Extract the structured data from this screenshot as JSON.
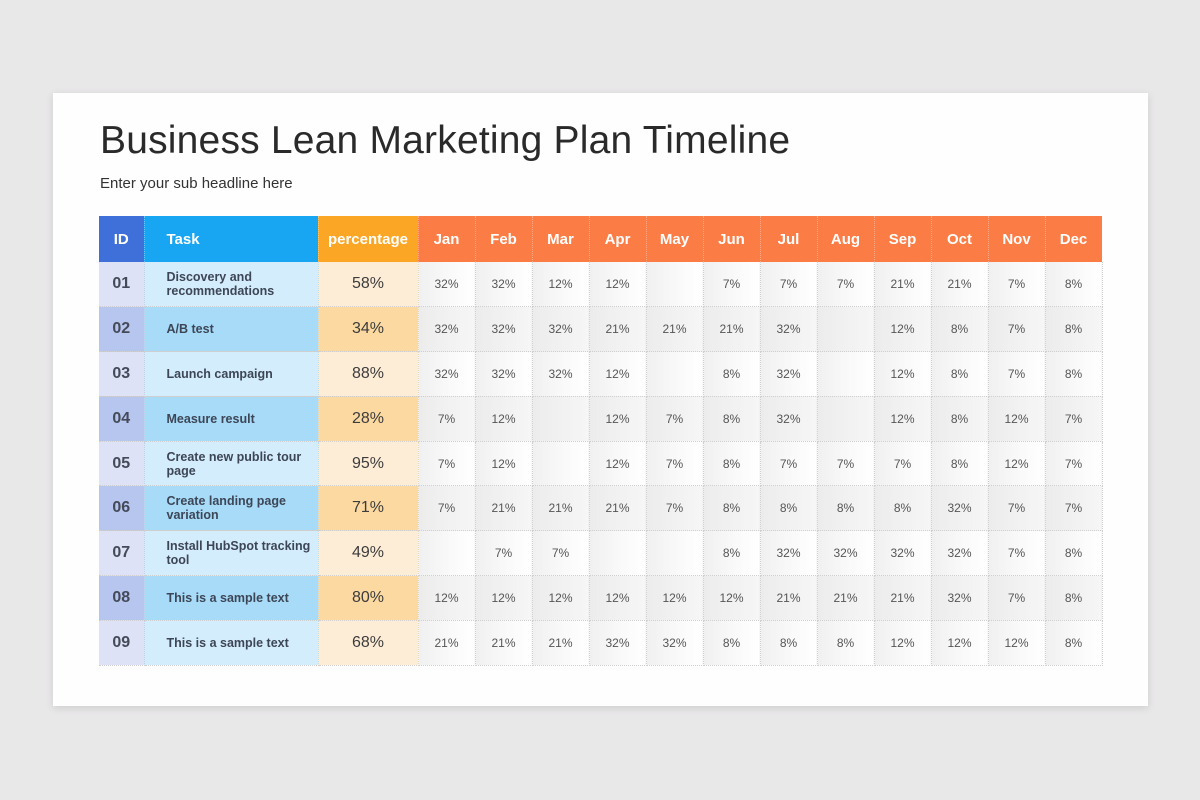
{
  "slide": {
    "title": "Business Lean Marketing Plan Timeline",
    "subtitle": "Enter your sub headline here"
  },
  "colors": {
    "id_header": "#3f6fd8",
    "task_header": "#18a6f2",
    "percentage_header": "#fba624",
    "month_header": "#fc7c45"
  },
  "table": {
    "headers": {
      "id": "ID",
      "task": "Task",
      "percentage": "percentage",
      "months": [
        "Jan",
        "Feb",
        "Mar",
        "Apr",
        "May",
        "Jun",
        "Jul",
        "Aug",
        "Sep",
        "Oct",
        "Nov",
        "Dec"
      ]
    },
    "rows": [
      {
        "id": "01",
        "task": "Discovery and recommendations",
        "percentage": "58%",
        "months": [
          "32%",
          "32%",
          "12%",
          "12%",
          "",
          "7%",
          "7%",
          "7%",
          "21%",
          "21%",
          "7%",
          "8%"
        ]
      },
      {
        "id": "02",
        "task": "A/B test",
        "percentage": "34%",
        "months": [
          "32%",
          "32%",
          "32%",
          "21%",
          "21%",
          "21%",
          "32%",
          "",
          "12%",
          "8%",
          "7%",
          "8%"
        ]
      },
      {
        "id": "03",
        "task": "Launch campaign",
        "percentage": "88%",
        "months": [
          "32%",
          "32%",
          "32%",
          "12%",
          "",
          "8%",
          "32%",
          "",
          "12%",
          "8%",
          "7%",
          "8%"
        ]
      },
      {
        "id": "04",
        "task": "Measure result",
        "percentage": "28%",
        "months": [
          "7%",
          "12%",
          "",
          "12%",
          "7%",
          "8%",
          "32%",
          "",
          "12%",
          "8%",
          "12%",
          "7%"
        ]
      },
      {
        "id": "05",
        "task": "Create new public tour page",
        "percentage": "95%",
        "months": [
          "7%",
          "12%",
          "",
          "12%",
          "7%",
          "8%",
          "7%",
          "7%",
          "7%",
          "8%",
          "12%",
          "7%"
        ]
      },
      {
        "id": "06",
        "task": "Create landing page variation",
        "percentage": "71%",
        "months": [
          "7%",
          "21%",
          "21%",
          "21%",
          "7%",
          "8%",
          "8%",
          "8%",
          "8%",
          "32%",
          "7%",
          "7%"
        ]
      },
      {
        "id": "07",
        "task": "Install HubSpot tracking tool",
        "percentage": "49%",
        "months": [
          "",
          "7%",
          "7%",
          "",
          "",
          "8%",
          "32%",
          "32%",
          "32%",
          "32%",
          "7%",
          "8%"
        ]
      },
      {
        "id": "08",
        "task": "This is a sample text",
        "percentage": "80%",
        "months": [
          "12%",
          "12%",
          "12%",
          "12%",
          "12%",
          "12%",
          "21%",
          "21%",
          "21%",
          "32%",
          "7%",
          "8%"
        ]
      },
      {
        "id": "09",
        "task": "This is a sample text",
        "percentage": "68%",
        "months": [
          "21%",
          "21%",
          "21%",
          "32%",
          "32%",
          "8%",
          "8%",
          "8%",
          "12%",
          "12%",
          "12%",
          "8%"
        ]
      }
    ]
  }
}
